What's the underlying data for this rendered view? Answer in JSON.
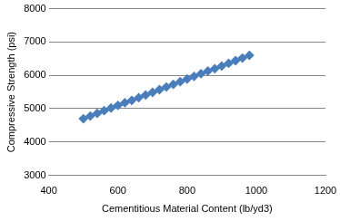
{
  "chart_data": {
    "type": "line",
    "x_label": "Cementitious Material Content (lb/yd3)",
    "y_label": "Compressive Strength (psi)",
    "x": [
      500,
      520,
      540,
      560,
      580,
      600,
      620,
      640,
      660,
      680,
      700,
      720,
      740,
      760,
      780,
      800,
      820,
      840,
      860,
      880,
      900,
      920,
      940,
      960,
      980
    ],
    "values": [
      4700,
      4780,
      4860,
      4940,
      5020,
      5100,
      5180,
      5250,
      5330,
      5410,
      5490,
      5570,
      5650,
      5730,
      5810,
      5890,
      5970,
      6050,
      6130,
      6200,
      6280,
      6360,
      6440,
      6520,
      6600
    ],
    "color": "#4a7ebb",
    "marker": "diamond",
    "xlim": [
      400,
      1200
    ],
    "xticks": [
      400,
      600,
      800,
      1000,
      1200
    ],
    "ylim": [
      3000,
      8000
    ],
    "yticks": [
      3000,
      4000,
      5000,
      6000,
      7000,
      8000
    ],
    "grid": true
  }
}
